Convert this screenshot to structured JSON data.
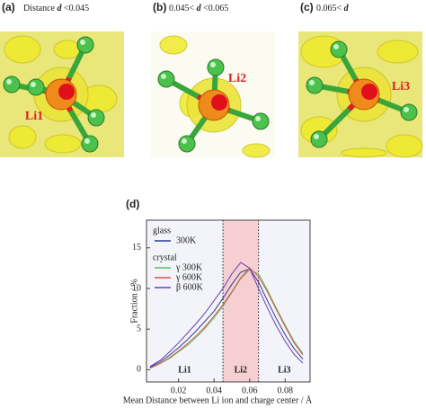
{
  "panels": [
    {
      "label": "(a)",
      "caption": {
        "before": "Distance ",
        "var": "d",
        "after": " <0.045"
      },
      "atom": "Li1"
    },
    {
      "label": "(b)",
      "caption": {
        "before": "0.045< ",
        "var": "d",
        "after": " <0.065"
      },
      "atom": "Li2"
    },
    {
      "label": "(c)",
      "caption": {
        "before": "0.065< ",
        "var": "d",
        "after": ""
      },
      "atom": "Li3"
    }
  ],
  "chart_data": {
    "type": "line",
    "label": "(d)",
    "x_label": "Mean Distance between Li ion and charge center / Å",
    "y_label": "Fraction / %",
    "x": [
      0.004,
      0.01,
      0.015,
      0.02,
      0.025,
      0.03,
      0.035,
      0.04,
      0.045,
      0.05,
      0.055,
      0.06,
      0.065,
      0.07,
      0.075,
      0.08,
      0.085,
      0.09
    ],
    "series": [
      {
        "name": "300K",
        "group": "glass",
        "color": "#2b3a8f",
        "values": [
          0.3,
          1,
          1.8,
          2.7,
          3.7,
          4.8,
          6,
          7.2,
          8.8,
          10.5,
          12,
          12.4,
          10.8,
          8.5,
          6.3,
          4.3,
          2.6,
          1.3
        ]
      },
      {
        "name": "γ 300K",
        "group": "crystal",
        "color": "#5cbf5c",
        "values": [
          0.2,
          0.8,
          1.4,
          2.2,
          3,
          4,
          5.1,
          6.4,
          7.8,
          9.5,
          11.2,
          12.3,
          11.8,
          9.8,
          7.6,
          5.5,
          3.5,
          2
        ]
      },
      {
        "name": "γ 600K",
        "color": "#d9534a",
        "values": [
          0.2,
          0.8,
          1.5,
          2.3,
          3.2,
          4.2,
          5.3,
          6.6,
          8,
          9.6,
          11.3,
          12.5,
          11.5,
          9.6,
          7.4,
          5.3,
          3.3,
          1.8
        ]
      },
      {
        "name": "β 600K",
        "color": "#6a3fb5",
        "values": [
          0.4,
          1.2,
          2.2,
          3.3,
          4.5,
          5.7,
          7,
          8.5,
          10,
          11.8,
          13.2,
          12.5,
          10,
          7.6,
          5.4,
          3.5,
          1.9,
          0.8
        ]
      }
    ],
    "shaded_region": [
      0.045,
      0.065
    ],
    "shade_color": "#f6cfd3",
    "region_labels": [
      "Li1",
      "Li2",
      "Li3"
    ],
    "xlim": [
      0.002,
      0.094
    ],
    "ylim": [
      -1.5,
      18.4
    ],
    "xticks": [
      0.02,
      0.04,
      0.06,
      0.08
    ],
    "yticks": [
      0,
      5,
      10,
      15
    ]
  }
}
